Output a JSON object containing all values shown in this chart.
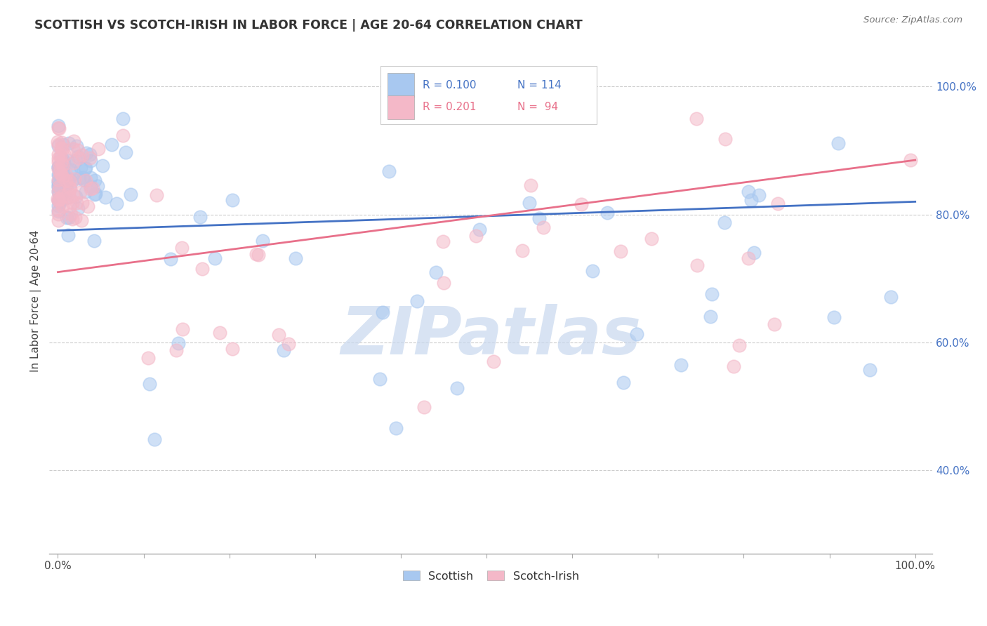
{
  "title": "SCOTTISH VS SCOTCH-IRISH IN LABOR FORCE | AGE 20-64 CORRELATION CHART",
  "source": "Source: ZipAtlas.com",
  "ylabel": "In Labor Force | Age 20-64",
  "xlim": [
    -0.01,
    1.02
  ],
  "ylim": [
    0.27,
    1.06
  ],
  "y_tick_positions_right": [
    0.4,
    0.6,
    0.8,
    1.0
  ],
  "y_tick_labels_right": [
    "40.0%",
    "60.0%",
    "80.0%",
    "100.0%"
  ],
  "scottish_color": "#a8c8f0",
  "scotch_irish_color": "#f4b8c8",
  "scottish_line_color": "#4472c4",
  "scotch_irish_line_color": "#e8708a",
  "legend_text_color_blue": "#4472c4",
  "legend_text_color_pink": "#e8708a",
  "background_color": "#ffffff",
  "grid_color": "#cccccc",
  "watermark_text": "ZIPatlas",
  "watermark_color": "#c8d8ee",
  "r_scottish": 0.1,
  "n_scottish": 114,
  "r_scotch_irish": 0.201,
  "n_scotch_irish": 94,
  "sc_seed": 12,
  "si_seed": 99
}
